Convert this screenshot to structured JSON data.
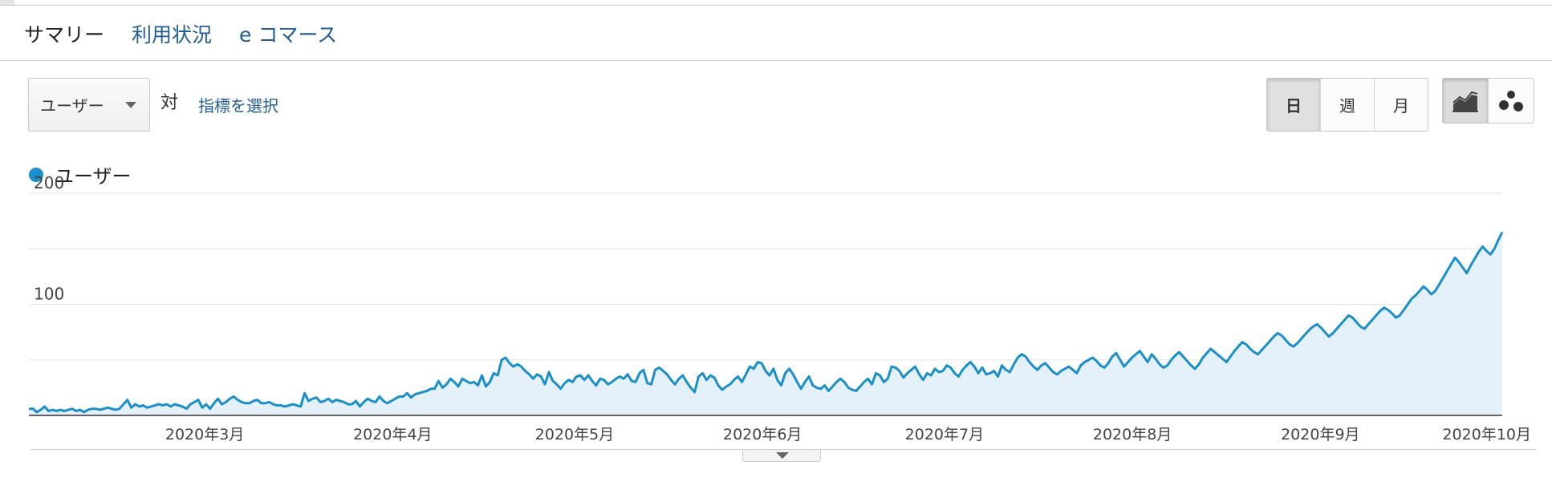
{
  "tabs": [
    {
      "label": "サマリー",
      "active": true
    },
    {
      "label": "利用状況",
      "active": false
    },
    {
      "label": "e コマース",
      "active": false
    }
  ],
  "controls": {
    "metric_selected": "ユーザー",
    "vs_label": "対",
    "choose_metric_link": "指標を選択",
    "range_buttons": [
      "日",
      "週",
      "月"
    ],
    "range_active": "日",
    "chart_type_icons": [
      "line-chart-icon",
      "motion-chart-icon"
    ],
    "chart_type_active": "line-chart-icon"
  },
  "colors": {
    "series": "#1a8fc9",
    "area_fill": "#e4f1fa",
    "link": "#1f5d94"
  },
  "chart_data": {
    "type": "area",
    "legend": [
      "ユーザー"
    ],
    "ylim": [
      0,
      200
    ],
    "y_ticks": [
      "200",
      "100"
    ],
    "x_tick_labels": [
      "2020年3月",
      "2020年4月",
      "2020年5月",
      "2020年6月",
      "2020年7月",
      "2020年8月",
      "2020年9月",
      "2020年10月"
    ],
    "grid": true,
    "series": [
      {
        "name": "ユーザー",
        "x_start": "2020-02-01",
        "x_end": "2020-10-01",
        "values": [
          6,
          6,
          3,
          5,
          8,
          4,
          5,
          4,
          5,
          4,
          5,
          6,
          4,
          5,
          3,
          5,
          6,
          6,
          5,
          6,
          7,
          6,
          5,
          6,
          10,
          14,
          7,
          10,
          8,
          9,
          7,
          8,
          9,
          10,
          9,
          10,
          8,
          10,
          9,
          8,
          6,
          10,
          12,
          14,
          7,
          10,
          6,
          11,
          15,
          10,
          12,
          15,
          17,
          14,
          12,
          11,
          11,
          13,
          14,
          11,
          11,
          12,
          10,
          9,
          9,
          8,
          9,
          10,
          9,
          8,
          20,
          13,
          15,
          16,
          12,
          13,
          15,
          12,
          14,
          13,
          12,
          10,
          10,
          13,
          8,
          12,
          15,
          13,
          12,
          17,
          13,
          11,
          13,
          15,
          17,
          17,
          20,
          16,
          19,
          20,
          21,
          22,
          24,
          24,
          31,
          25,
          28,
          33,
          30,
          26,
          33,
          31,
          29,
          30,
          27,
          36,
          26,
          30,
          38,
          36,
          50,
          52,
          47,
          44,
          46,
          44,
          40,
          37,
          33,
          37,
          35,
          28,
          39,
          31,
          28,
          24,
          29,
          32,
          30,
          35,
          36,
          32,
          36,
          31,
          27,
          33,
          32,
          28,
          30,
          33,
          35,
          33,
          37,
          31,
          30,
          38,
          41,
          29,
          28,
          41,
          43,
          40,
          37,
          32,
          28,
          33,
          36,
          30,
          25,
          21,
          35,
          38,
          32,
          36,
          34,
          27,
          23,
          26,
          28,
          32,
          35,
          30,
          37,
          44,
          42,
          48,
          47,
          40,
          36,
          42,
          32,
          27,
          38,
          42,
          37,
          30,
          24,
          30,
          35,
          27,
          25,
          24,
          27,
          22,
          26,
          30,
          33,
          30,
          25,
          23,
          22,
          26,
          30,
          33,
          28,
          38,
          36,
          30,
          33,
          44,
          43,
          40,
          34,
          38,
          41,
          44,
          37,
          32,
          38,
          36,
          42,
          39,
          40,
          45,
          43,
          38,
          35,
          41,
          45,
          48,
          44,
          38,
          43,
          37,
          38,
          40,
          35,
          45,
          41,
          39,
          46,
          52,
          55,
          53,
          48,
          44,
          41,
          45,
          47,
          43,
          39,
          37,
          40,
          42,
          44,
          41,
          38,
          45,
          48,
          50,
          52,
          49,
          45,
          43,
          47,
          53,
          56,
          50,
          44,
          48,
          52,
          55,
          58,
          53,
          48,
          55,
          51,
          46,
          43,
          45,
          50,
          54,
          57,
          53,
          49,
          45,
          42,
          46,
          52,
          56,
          60,
          57,
          54,
          51,
          48,
          53,
          58,
          62,
          66,
          64,
          60,
          57,
          55,
          59,
          63,
          67,
          71,
          74,
          72,
          68,
          64,
          62,
          65,
          69,
          73,
          77,
          80,
          82,
          79,
          75,
          71,
          74,
          78,
          82,
          86,
          90,
          88,
          84,
          80,
          78,
          82,
          86,
          90,
          94,
          97,
          95,
          92,
          88,
          90,
          95,
          100,
          105,
          108,
          112,
          116,
          113,
          109,
          112,
          118,
          124,
          130,
          136,
          142,
          138,
          133,
          128,
          135,
          141,
          147,
          152,
          148,
          145,
          150,
          158,
          165
        ]
      }
    ]
  }
}
